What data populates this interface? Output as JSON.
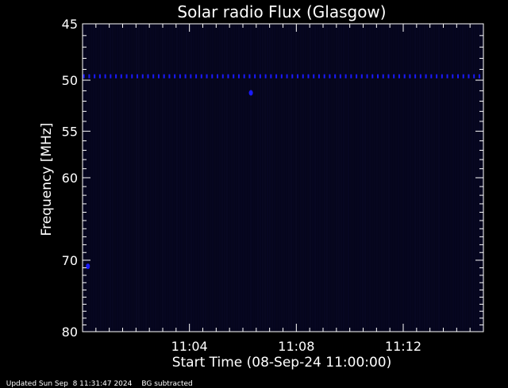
{
  "chart_data": {
    "type": "heatmap",
    "title": "Solar radio Flux (Glasgow)",
    "xlabel": "Start Time (08-Sep-24 11:00:00)",
    "ylabel": "Frequency [MHz]",
    "x_unit": "minutes after 11:00:00",
    "xlim": [
      0,
      15
    ],
    "ylim": [
      45,
      80
    ],
    "y_scale": "log",
    "y_inverted": true,
    "xticks": [
      {
        "value": 4,
        "label": "11:04"
      },
      {
        "value": 8,
        "label": "11:08"
      },
      {
        "value": 12,
        "label": "11:12"
      }
    ],
    "yticks": [
      {
        "value": 45,
        "label": "45"
      },
      {
        "value": 50,
        "label": "50"
      },
      {
        "value": 55,
        "label": "55"
      },
      {
        "value": 60,
        "label": "60"
      },
      {
        "value": 70,
        "label": "70"
      },
      {
        "value": 80,
        "label": "80"
      }
    ],
    "background_color": "#05051c",
    "signal_color": "#1a1aff",
    "features": [
      {
        "name": "interference line",
        "frequency_mhz": 49.6,
        "time_range": [
          0,
          15
        ],
        "kind": "horizontal dashed line"
      },
      {
        "name": "bright dot",
        "frequency_mhz": 51.2,
        "time": 6.3,
        "kind": "point"
      },
      {
        "name": "bright dot",
        "frequency_mhz": 70.8,
        "time": 0.2,
        "kind": "point"
      }
    ],
    "grid": false,
    "legend": "none"
  },
  "footer": {
    "updated": "Updated Sun Sep  8 11:31:47 2024",
    "note": "BG subtracted"
  }
}
